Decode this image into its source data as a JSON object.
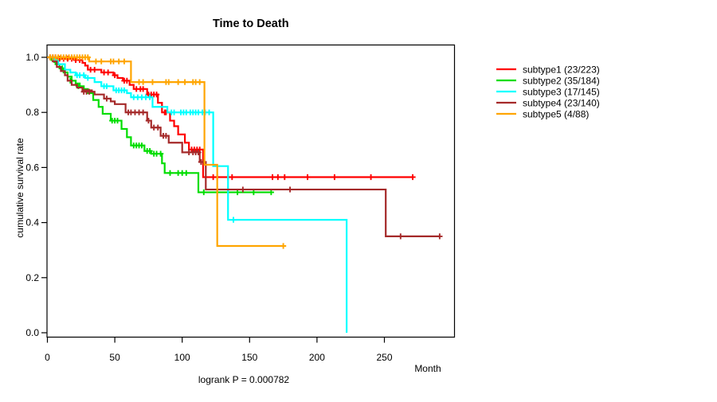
{
  "chart_data": {
    "type": "line",
    "subtype": "kaplan-meier-step",
    "title": "Time to Death",
    "xlabel": "Month",
    "ylabel": "cumulative survival rate",
    "subtitle": "logrank P = 0.000782",
    "logrank_p": "0.000782",
    "xlim": [
      0,
      300
    ],
    "ylim": [
      0,
      1
    ],
    "xticks": [
      "0",
      "50",
      "100",
      "150",
      "200",
      "250"
    ],
    "xtick_values": [
      0,
      50,
      100,
      150,
      200,
      250
    ],
    "yticks": [
      "0.0",
      "0.2",
      "0.4",
      "0.6",
      "0.8",
      "1.0"
    ],
    "ytick_values": [
      0.0,
      0.2,
      0.4,
      0.6,
      0.8,
      1.0
    ],
    "grid": false,
    "legend_position": "right-outside",
    "series": [
      {
        "name": "subtype1 (23/223)",
        "color": "#FF0000",
        "points": [
          [
            0,
            1.0
          ],
          [
            8,
            0.995
          ],
          [
            20,
            0.99
          ],
          [
            26,
            0.98
          ],
          [
            28,
            0.97
          ],
          [
            30,
            0.955
          ],
          [
            40,
            0.945
          ],
          [
            49,
            0.935
          ],
          [
            52,
            0.925
          ],
          [
            56,
            0.915
          ],
          [
            61,
            0.9
          ],
          [
            64,
            0.885
          ],
          [
            74,
            0.865
          ],
          [
            82,
            0.835
          ],
          [
            85,
            0.8
          ],
          [
            91,
            0.77
          ],
          [
            94,
            0.75
          ],
          [
            97,
            0.72
          ],
          [
            102,
            0.69
          ],
          [
            105,
            0.665
          ],
          [
            115.5,
            0.565
          ]
        ],
        "end": 271,
        "end_censored": true,
        "censors": [
          [
            2,
            1.0
          ],
          [
            4,
            1.0
          ],
          [
            6,
            1.0
          ],
          [
            9,
            0.995
          ],
          [
            12,
            0.995
          ],
          [
            15,
            0.995
          ],
          [
            18,
            0.995
          ],
          [
            21,
            0.99
          ],
          [
            24,
            0.99
          ],
          [
            32,
            0.955
          ],
          [
            35,
            0.955
          ],
          [
            42,
            0.945
          ],
          [
            45,
            0.945
          ],
          [
            50,
            0.935
          ],
          [
            57,
            0.915
          ],
          [
            59,
            0.915
          ],
          [
            66,
            0.885
          ],
          [
            69,
            0.885
          ],
          [
            71,
            0.885
          ],
          [
            75,
            0.865
          ],
          [
            77,
            0.865
          ],
          [
            79,
            0.865
          ],
          [
            81,
            0.865
          ],
          [
            87,
            0.8
          ],
          [
            88,
            0.8
          ],
          [
            107,
            0.665
          ],
          [
            109,
            0.665
          ],
          [
            111,
            0.665
          ],
          [
            113,
            0.665
          ],
          [
            123,
            0.565
          ],
          [
            126,
            0.565
          ],
          [
            134,
            0.565
          ],
          [
            137,
            0.565
          ],
          [
            167,
            0.565
          ],
          [
            171,
            0.565
          ],
          [
            176,
            0.565
          ],
          [
            193,
            0.565
          ],
          [
            213,
            0.565
          ],
          [
            240,
            0.565
          ]
        ]
      },
      {
        "name": "subtype2 (35/184)",
        "color": "#00DD00",
        "points": [
          [
            0,
            1.0
          ],
          [
            3,
            0.99
          ],
          [
            6,
            0.975
          ],
          [
            9,
            0.96
          ],
          [
            12,
            0.945
          ],
          [
            15,
            0.93
          ],
          [
            18,
            0.915
          ],
          [
            21,
            0.905
          ],
          [
            24,
            0.895
          ],
          [
            27,
            0.885
          ],
          [
            30,
            0.87
          ],
          [
            34,
            0.845
          ],
          [
            38,
            0.82
          ],
          [
            41,
            0.795
          ],
          [
            47,
            0.77
          ],
          [
            55,
            0.74
          ],
          [
            59,
            0.71
          ],
          [
            62,
            0.68
          ],
          [
            72,
            0.66
          ],
          [
            77,
            0.65
          ],
          [
            85,
            0.615
          ],
          [
            87,
            0.58
          ],
          [
            112,
            0.51
          ]
        ],
        "end": 166,
        "end_censored": true,
        "censors": [
          [
            5,
            0.99
          ],
          [
            11,
            0.96
          ],
          [
            17,
            0.915
          ],
          [
            23,
            0.895
          ],
          [
            48,
            0.77
          ],
          [
            50,
            0.77
          ],
          [
            52,
            0.77
          ],
          [
            64,
            0.68
          ],
          [
            66,
            0.68
          ],
          [
            68,
            0.68
          ],
          [
            70,
            0.68
          ],
          [
            74,
            0.66
          ],
          [
            76,
            0.66
          ],
          [
            79,
            0.65
          ],
          [
            81,
            0.65
          ],
          [
            84,
            0.65
          ],
          [
            91,
            0.58
          ],
          [
            97,
            0.58
          ],
          [
            100,
            0.58
          ],
          [
            103,
            0.58
          ],
          [
            116,
            0.51
          ],
          [
            141,
            0.51
          ],
          [
            153,
            0.51
          ]
        ]
      },
      {
        "name": "subtype3 (17/145)",
        "color": "#00FFFF",
        "points": [
          [
            0,
            1.0
          ],
          [
            5,
            0.99
          ],
          [
            8,
            0.975
          ],
          [
            13,
            0.955
          ],
          [
            17,
            0.945
          ],
          [
            21,
            0.935
          ],
          [
            28,
            0.925
          ],
          [
            35,
            0.91
          ],
          [
            40,
            0.895
          ],
          [
            49,
            0.88
          ],
          [
            59,
            0.87
          ],
          [
            62,
            0.855
          ],
          [
            78,
            0.82
          ],
          [
            89,
            0.8
          ],
          [
            123,
            0.605
          ],
          [
            134,
            0.41
          ],
          [
            222,
            0.0
          ]
        ],
        "end": 222,
        "end_censored": false,
        "censors": [
          [
            22,
            0.935
          ],
          [
            24,
            0.935
          ],
          [
            27,
            0.935
          ],
          [
            30,
            0.925
          ],
          [
            42,
            0.895
          ],
          [
            44,
            0.895
          ],
          [
            51,
            0.88
          ],
          [
            53,
            0.88
          ],
          [
            55,
            0.88
          ],
          [
            57,
            0.88
          ],
          [
            64,
            0.855
          ],
          [
            67,
            0.855
          ],
          [
            70,
            0.855
          ],
          [
            73,
            0.855
          ],
          [
            76,
            0.855
          ],
          [
            92,
            0.8
          ],
          [
            94,
            0.8
          ],
          [
            99,
            0.8
          ],
          [
            101,
            0.8
          ],
          [
            103,
            0.8
          ],
          [
            106,
            0.8
          ],
          [
            108,
            0.8
          ],
          [
            110,
            0.8
          ],
          [
            112,
            0.8
          ],
          [
            115,
            0.8
          ],
          [
            117,
            0.8
          ],
          [
            120,
            0.8
          ],
          [
            138,
            0.41
          ]
        ]
      },
      {
        "name": "subtype4 (23/140)",
        "color": "#A52A2A",
        "points": [
          [
            0,
            1.0
          ],
          [
            4,
            0.985
          ],
          [
            7,
            0.965
          ],
          [
            10,
            0.95
          ],
          [
            13,
            0.935
          ],
          [
            15,
            0.915
          ],
          [
            18,
            0.9
          ],
          [
            22,
            0.89
          ],
          [
            26,
            0.88
          ],
          [
            33,
            0.875
          ],
          [
            35,
            0.865
          ],
          [
            42,
            0.85
          ],
          [
            47,
            0.84
          ],
          [
            50,
            0.83
          ],
          [
            58,
            0.8
          ],
          [
            74,
            0.77
          ],
          [
            77,
            0.745
          ],
          [
            84,
            0.715
          ],
          [
            90,
            0.69
          ],
          [
            100,
            0.655
          ],
          [
            113,
            0.62
          ],
          [
            117.5,
            0.52
          ],
          [
            251,
            0.35
          ]
        ],
        "end": 291,
        "end_censored": true,
        "censors": [
          [
            27,
            0.875
          ],
          [
            29,
            0.875
          ],
          [
            31,
            0.875
          ],
          [
            44,
            0.85
          ],
          [
            60,
            0.8
          ],
          [
            62,
            0.8
          ],
          [
            65,
            0.8
          ],
          [
            68,
            0.8
          ],
          [
            71,
            0.8
          ],
          [
            75,
            0.77
          ],
          [
            79,
            0.745
          ],
          [
            82,
            0.745
          ],
          [
            86,
            0.715
          ],
          [
            88,
            0.715
          ],
          [
            105,
            0.655
          ],
          [
            108,
            0.655
          ],
          [
            110,
            0.655
          ],
          [
            112,
            0.655
          ],
          [
            114,
            0.62
          ],
          [
            116,
            0.62
          ],
          [
            145,
            0.52
          ],
          [
            180,
            0.52
          ],
          [
            262,
            0.35
          ]
        ]
      },
      {
        "name": "subtype5 (4/88)",
        "color": "#FFA500",
        "points": [
          [
            0,
            1.0
          ],
          [
            31,
            0.985
          ],
          [
            62,
            0.91
          ],
          [
            116.5,
            0.61
          ],
          [
            126,
            0.315
          ]
        ],
        "end": 175,
        "end_censored": true,
        "censors": [
          [
            2,
            1.0
          ],
          [
            4,
            1.0
          ],
          [
            6,
            1.0
          ],
          [
            8,
            1.0
          ],
          [
            10,
            1.0
          ],
          [
            12,
            1.0
          ],
          [
            14,
            1.0
          ],
          [
            16,
            1.0
          ],
          [
            18,
            1.0
          ],
          [
            20,
            1.0
          ],
          [
            22,
            1.0
          ],
          [
            24,
            1.0
          ],
          [
            26,
            1.0
          ],
          [
            28,
            1.0
          ],
          [
            30,
            1.0
          ],
          [
            36,
            0.985
          ],
          [
            40,
            0.985
          ],
          [
            47,
            0.985
          ],
          [
            49,
            0.985
          ],
          [
            53,
            0.985
          ],
          [
            57,
            0.985
          ],
          [
            68,
            0.91
          ],
          [
            71,
            0.91
          ],
          [
            78,
            0.91
          ],
          [
            88,
            0.91
          ],
          [
            90,
            0.91
          ],
          [
            97,
            0.91
          ],
          [
            102,
            0.91
          ],
          [
            108,
            0.91
          ],
          [
            110,
            0.91
          ],
          [
            113,
            0.91
          ]
        ]
      }
    ]
  }
}
